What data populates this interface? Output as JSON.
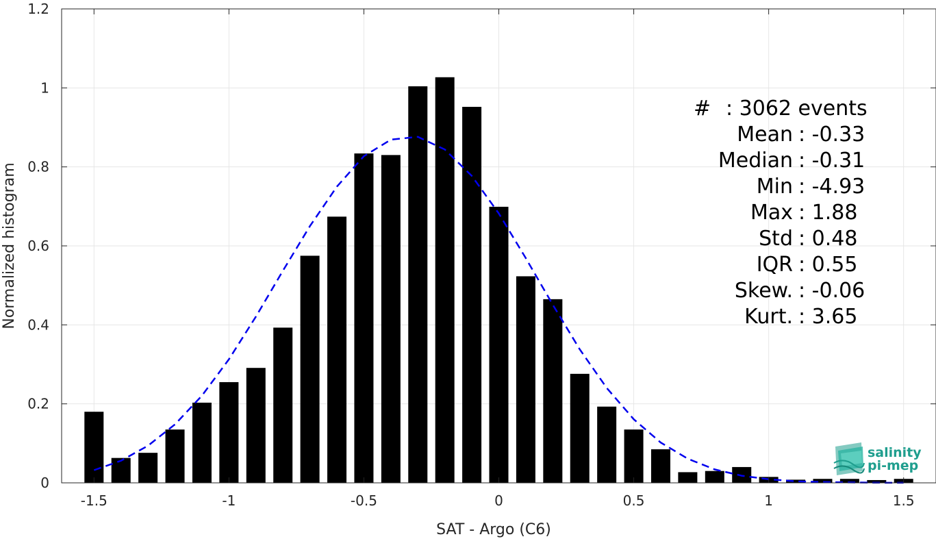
{
  "chart_data": {
    "type": "bar",
    "xlabel": "SAT - Argo (C6)",
    "ylabel": "Normalized histogram",
    "xlim": [
      -1.62,
      1.62
    ],
    "ylim": [
      0,
      1.2
    ],
    "xticks": [
      -1.5,
      -1,
      -0.5,
      0,
      0.5,
      1,
      1.5
    ],
    "xtick_labels": [
      "-1.5",
      "-1",
      "-0.5",
      "0",
      "0.5",
      "1",
      "1.5"
    ],
    "yticks": [
      0,
      0.2,
      0.4,
      0.6,
      0.8,
      1,
      1.2
    ],
    "ytick_labels": [
      "0",
      "0.2",
      "0.4",
      "0.6",
      "0.8",
      "1",
      "1.2"
    ],
    "grid": true,
    "bar_color": "#000000",
    "series": [
      {
        "x": [
          -1.5,
          -1.4,
          -1.3,
          -1.2,
          -1.1,
          -1.0,
          -0.9,
          -0.8,
          -0.7,
          -0.6,
          -0.5,
          -0.4,
          -0.3,
          -0.2,
          -0.1,
          0.0,
          0.1,
          0.2,
          0.3,
          0.4,
          0.5,
          0.6,
          0.7,
          0.8,
          0.9,
          1.0,
          1.1,
          1.2,
          1.3,
          1.4,
          1.5
        ],
        "values": [
          0.18,
          0.063,
          0.076,
          0.135,
          0.203,
          0.255,
          0.291,
          0.393,
          0.575,
          0.674,
          0.834,
          0.83,
          1.004,
          1.027,
          0.952,
          0.699,
          0.523,
          0.465,
          0.276,
          0.193,
          0.135,
          0.085,
          0.027,
          0.03,
          0.04,
          0.015,
          0.008,
          0.01,
          0.01,
          0.007,
          0.01
        ]
      },
      {
        "type": "line",
        "style": "dashed",
        "color": "#0000ee",
        "x": [
          -1.5,
          -1.4,
          -1.3,
          -1.2,
          -1.1,
          -1.0,
          -0.9,
          -0.8,
          -0.7,
          -0.6,
          -0.5,
          -0.4,
          -0.3,
          -0.2,
          -0.1,
          0.0,
          0.1,
          0.2,
          0.3,
          0.4,
          0.5,
          0.6,
          0.7,
          0.8,
          0.9,
          1.0,
          1.1,
          1.2,
          1.3,
          1.4,
          1.5
        ],
        "values": [
          0.032,
          0.056,
          0.094,
          0.148,
          0.221,
          0.313,
          0.421,
          0.537,
          0.65,
          0.75,
          0.827,
          0.869,
          0.876,
          0.844,
          0.777,
          0.682,
          0.569,
          0.451,
          0.338,
          0.24,
          0.161,
          0.102,
          0.061,
          0.034,
          0.018,
          0.009,
          0.004,
          0.002,
          0.001,
          0.0003,
          0.0001
        ]
      }
    ],
    "stats": [
      {
        "label": "#  ",
        "value": "3062 events"
      },
      {
        "label": "Mean",
        "value": "-0.33"
      },
      {
        "label": "Median",
        "value": "-0.31"
      },
      {
        "label": "Min",
        "value": "-4.93"
      },
      {
        "label": "Max",
        "value": "1.88"
      },
      {
        "label": "Std",
        "value": "0.48"
      },
      {
        "label": "IQR",
        "value": "0.55"
      },
      {
        "label": "Skew.",
        "value": "-0.06"
      },
      {
        "label": "Kurt.",
        "value": "3.65"
      }
    ]
  },
  "logo": {
    "line1": "salinity",
    "line2": "pi-mep",
    "color": "#1f9e8e"
  }
}
